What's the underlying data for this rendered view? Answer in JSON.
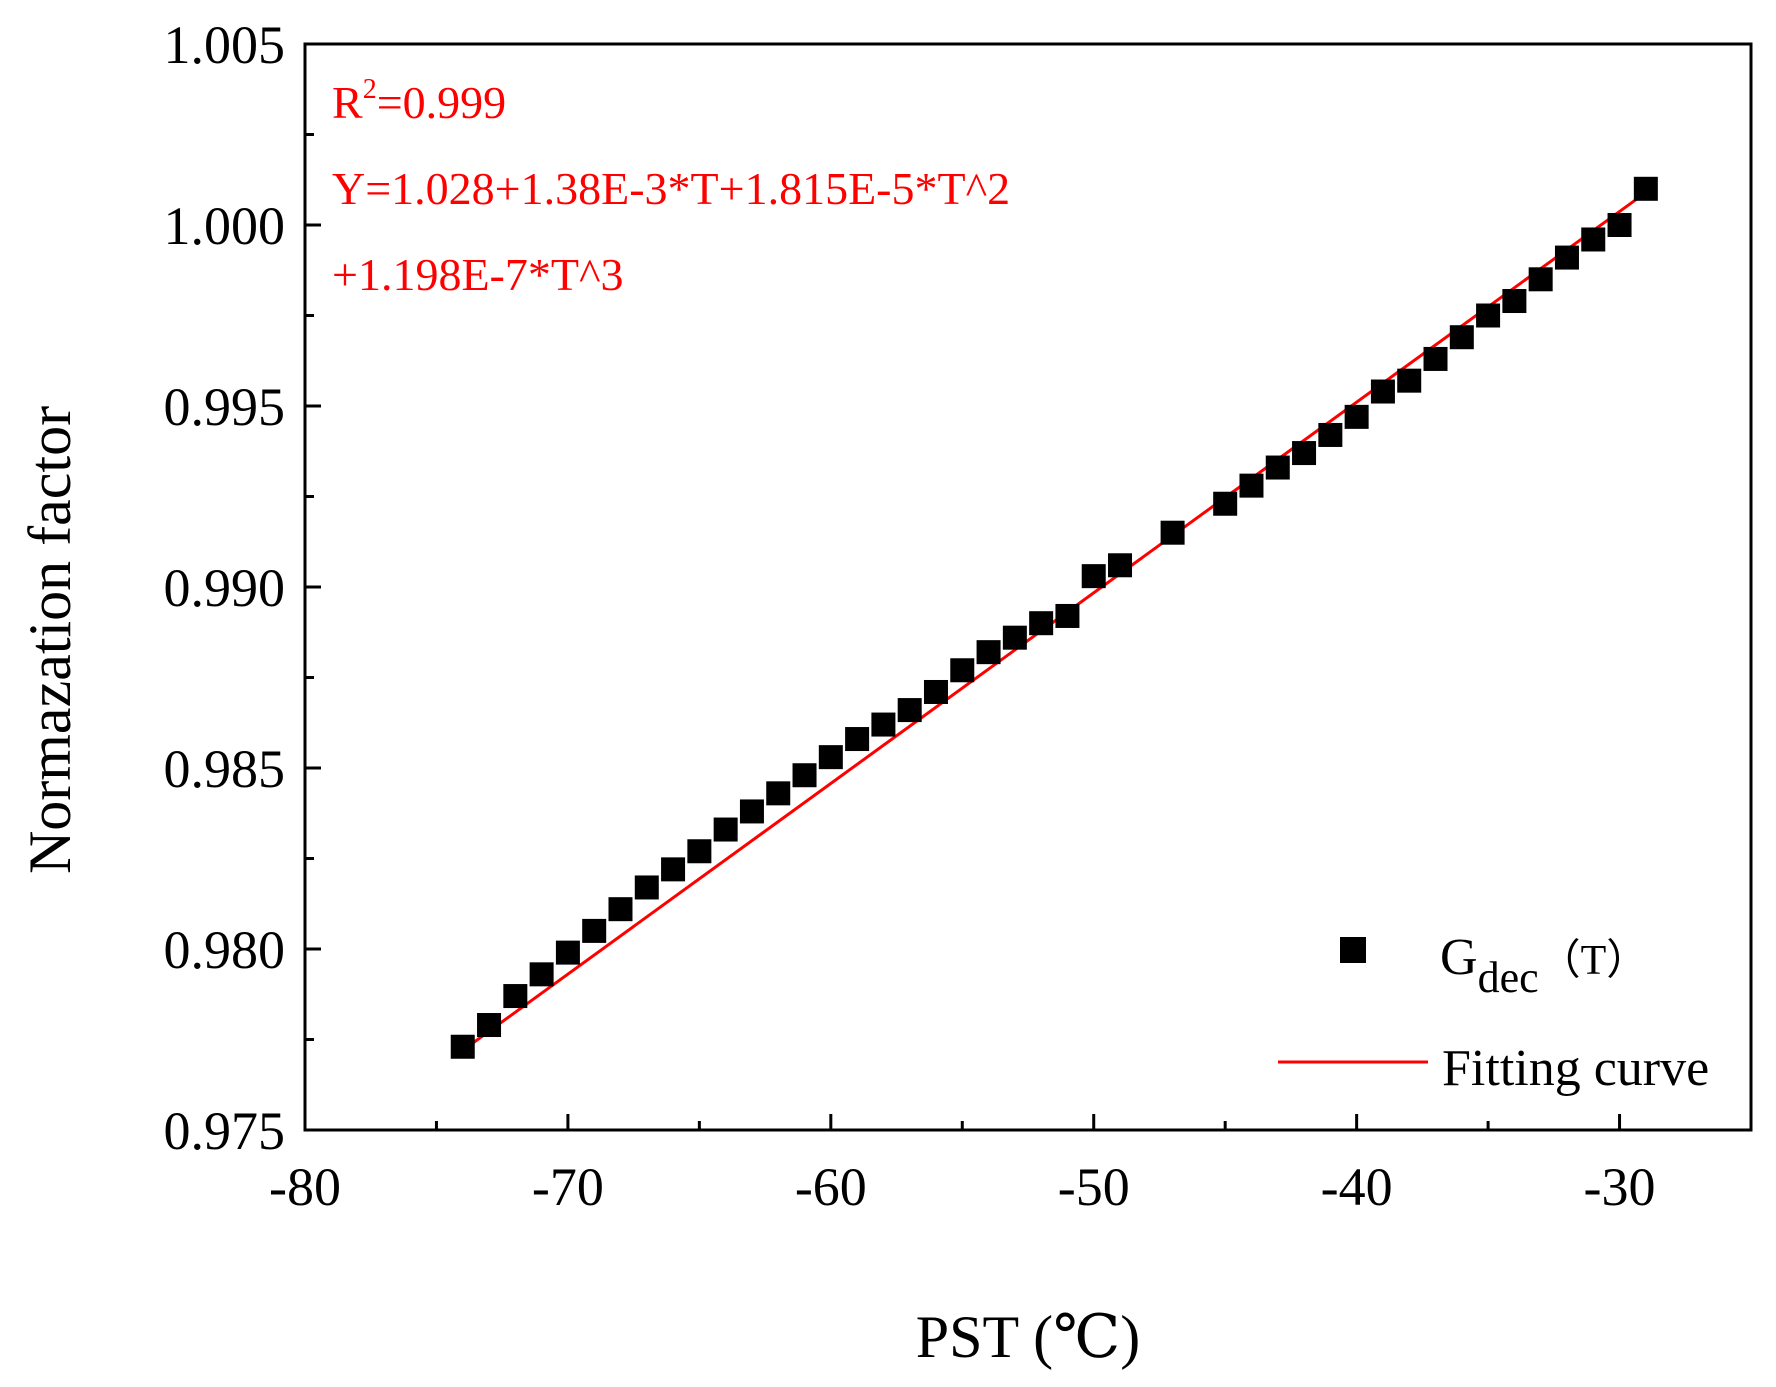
{
  "chart_data": {
    "type": "scatter",
    "xlabel": "PST (℃)",
    "ylabel": "Normazation factor",
    "xlim": [
      -80,
      -25
    ],
    "ylim": [
      0.975,
      1.005
    ],
    "x_ticks": [
      -80,
      -70,
      -60,
      -50,
      -40,
      -30
    ],
    "x_tick_labels": [
      "-80",
      "-70",
      "-60",
      "-50",
      "-40",
      "-30"
    ],
    "y_ticks": [
      0.975,
      0.98,
      0.985,
      0.99,
      0.995,
      1.0,
      1.005
    ],
    "y_tick_labels": [
      "0.975",
      "0.980",
      "0.985",
      "0.990",
      "0.995",
      "1.000",
      "1.005"
    ],
    "grid": false,
    "legend_position": "bottom-right",
    "annotation": {
      "r2_label": "R",
      "r2_superscript": "2",
      "r2_value": "=0.999",
      "equation_line1": "Y=1.028+1.38E-3*T+1.815E-5*T^2",
      "equation_line2": "+1.198E-7*T^3",
      "color": "#ff0000"
    },
    "series": [
      {
        "name": "Gdec(T)",
        "legend_label": "G",
        "legend_subscript": "dec",
        "legend_suffix": "（T）",
        "marker": "square",
        "color": "#000000",
        "x": [
          -74,
          -73,
          -72,
          -71,
          -70,
          -69,
          -68,
          -67,
          -66,
          -65,
          -64,
          -63,
          -62,
          -61,
          -60,
          -59,
          -58,
          -57,
          -56,
          -55,
          -54,
          -53,
          -52,
          -51,
          -50,
          -49,
          -47,
          -45,
          -44,
          -43,
          -42,
          -41,
          -40,
          -39,
          -38,
          -37,
          -36,
          -35,
          -34,
          -33,
          -32,
          -31,
          -30,
          -29
        ],
        "y": [
          0.9773,
          0.9779,
          0.9787,
          0.9793,
          0.9799,
          0.9805,
          0.9811,
          0.9817,
          0.9822,
          0.9827,
          0.9833,
          0.9838,
          0.9843,
          0.9848,
          0.9853,
          0.9858,
          0.9862,
          0.9866,
          0.9871,
          0.9877,
          0.9882,
          0.9886,
          0.989,
          0.9892,
          0.9903,
          0.9906,
          0.9915,
          0.9923,
          0.9928,
          0.9933,
          0.9937,
          0.9942,
          0.9947,
          0.9954,
          0.9957,
          0.9963,
          0.9969,
          0.9975,
          0.9979,
          0.9985,
          0.9991,
          0.9996,
          1.0,
          1.001
        ]
      },
      {
        "name": "Fitting curve",
        "legend_label": "Fitting curve",
        "type": "line",
        "color": "#ff0000",
        "x": [
          -74,
          -29
        ],
        "y": [
          0.9772,
          1.0009
        ]
      }
    ]
  }
}
